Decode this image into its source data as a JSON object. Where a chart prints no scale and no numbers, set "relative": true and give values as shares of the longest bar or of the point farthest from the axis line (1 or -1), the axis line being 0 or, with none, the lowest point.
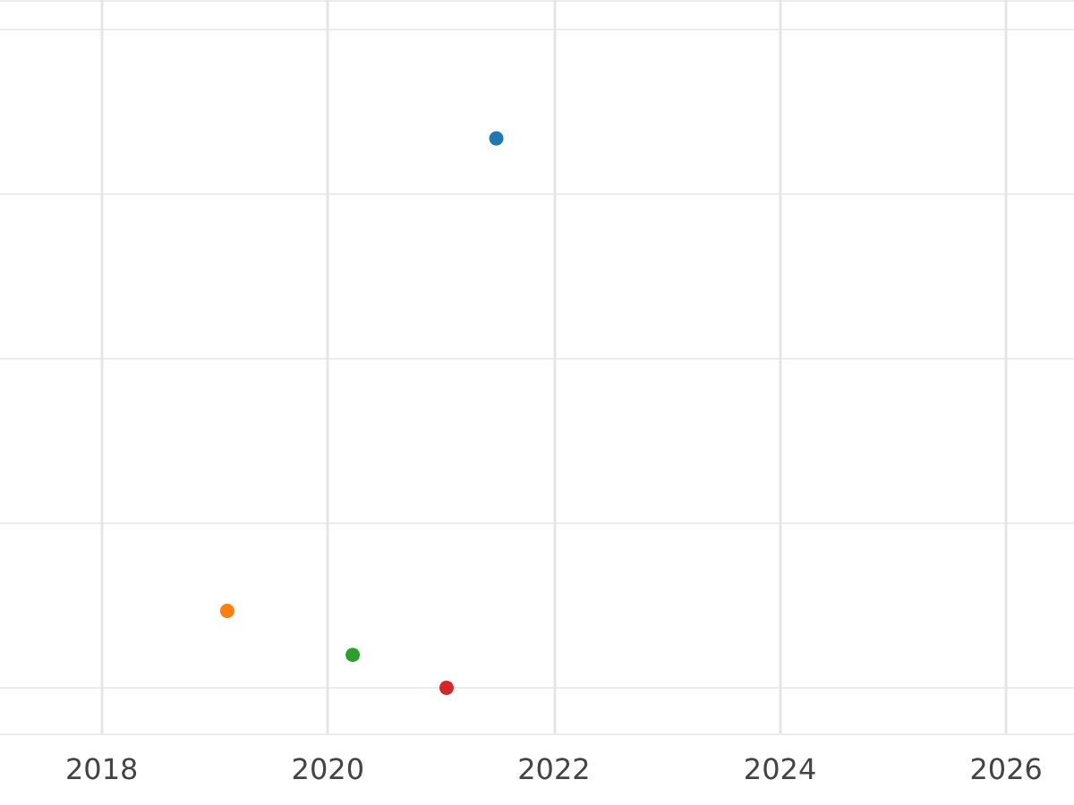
{
  "chart_data": {
    "type": "scatter",
    "relative": true,
    "x": [
      2021.49,
      2019.11,
      2020.22,
      2021.05
    ],
    "values": [
      1,
      0.14,
      0.06,
      0
    ],
    "colors": [
      "#1f77b4",
      "#ff7f0e",
      "#2ca02c",
      "#d62728"
    ],
    "xlim": [
      2017.1,
      2026.6
    ],
    "xticks": [
      2018,
      2020,
      2022,
      2024,
      2026
    ],
    "grid": true,
    "marker": "circle",
    "tick_labels": "x"
  }
}
